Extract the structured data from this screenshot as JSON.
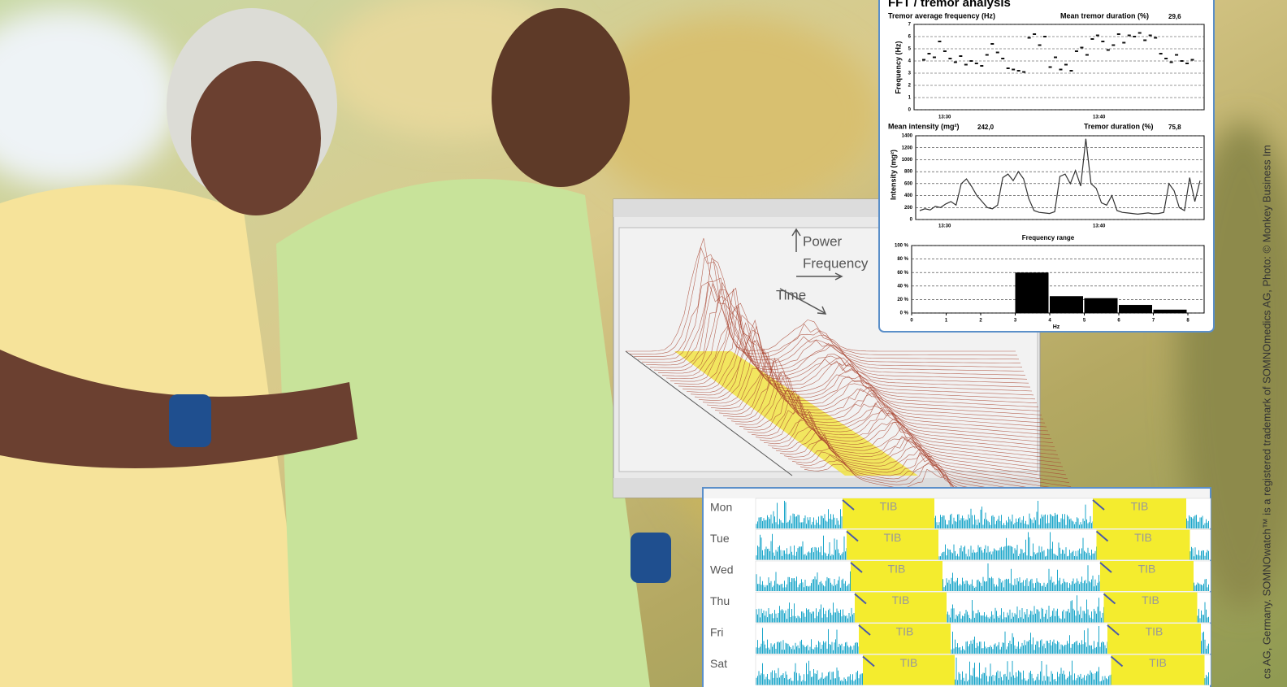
{
  "credit": "cs AG, Germany.  SOMNOwatch™ is a registered trademark of SOMNOmedics AG,    Photo: © Monkey Business Im",
  "tremor_panel": {
    "title": "FFT / tremor analysis",
    "frequency_chart": {
      "type": "scatter",
      "label_left": "Tremor average frequency (Hz)",
      "label_right": "Mean tremor duration (%)",
      "label_right_value": "29,6",
      "ylabel": "Frequency (Hz)",
      "time_labels": [
        "13:30",
        "13:40"
      ],
      "ylim": [
        0,
        7
      ],
      "yticks": [
        0,
        1,
        2,
        3,
        4,
        5,
        6,
        7
      ],
      "values": [
        4.1,
        4.6,
        4.3,
        5.6,
        4.8,
        4.2,
        3.9,
        4.4,
        3.7,
        4.0,
        3.8,
        3.6,
        4.5,
        5.4,
        4.7,
        4.2,
        3.4,
        3.3,
        3.2,
        3.1,
        5.9,
        6.2,
        5.3,
        6.0,
        3.5,
        4.3,
        3.3,
        3.7,
        3.2,
        4.8,
        5.1,
        4.5,
        5.8,
        6.1,
        5.6,
        4.9,
        5.3,
        6.2,
        5.5,
        6.1,
        6.0,
        6.3,
        5.7,
        6.1,
        5.9,
        4.6,
        4.2,
        3.9,
        4.5,
        4.0,
        3.8,
        4.1
      ],
      "color": "#111111"
    },
    "intensity_chart": {
      "type": "line",
      "label_left": "Mean intensity (mg²)",
      "label_left_value": "242,0",
      "label_right": "Tremor duration (%)",
      "label_right_value": "75,8",
      "ylabel": "Intensity (mg²)",
      "time_labels": [
        "13:30",
        "13:40"
      ],
      "ylim": [
        0,
        1400
      ],
      "yticks": [
        0,
        200,
        400,
        600,
        800,
        1000,
        1200,
        1400
      ],
      "values": [
        150,
        180,
        160,
        220,
        200,
        260,
        300,
        240,
        600,
        680,
        550,
        400,
        300,
        200,
        180,
        240,
        700,
        760,
        650,
        800,
        680,
        350,
        150,
        120,
        110,
        100,
        130,
        720,
        760,
        600,
        820,
        560,
        1350,
        600,
        520,
        280,
        240,
        400,
        150,
        120,
        110,
        100,
        90,
        100,
        110,
        95,
        100,
        120,
        600,
        480,
        200,
        150,
        700,
        300,
        650
      ],
      "color": "#333333"
    },
    "frequency_range": {
      "type": "histogram",
      "title": "Frequency range",
      "xlabel": "Hz",
      "xlim": [
        0,
        8
      ],
      "xticks": [
        0,
        1,
        2,
        3,
        4,
        5,
        6,
        7,
        8
      ],
      "ylim": [
        0,
        100
      ],
      "yticks": [
        {
          "value": 0,
          "label": "0 %"
        },
        {
          "value": 20,
          "label": "20 %"
        },
        {
          "value": 40,
          "label": "40 %"
        },
        {
          "value": 60,
          "label": "60 %"
        },
        {
          "value": 80,
          "label": "80 %"
        },
        {
          "value": 100,
          "label": "100 %"
        }
      ],
      "bins": [
        3,
        4,
        5,
        6,
        7,
        8
      ],
      "values": [
        60,
        25,
        22,
        12,
        5
      ],
      "color": "#000000"
    }
  },
  "fft_panel": {
    "axis_power": "Power",
    "axis_frequency": "Frequency",
    "axis_time": "Time"
  },
  "weekly_panel": {
    "days": [
      "Mon",
      "Tue",
      "Wed",
      "Thu",
      "Fri",
      "Sat"
    ],
    "tib_label": "TIB"
  }
}
